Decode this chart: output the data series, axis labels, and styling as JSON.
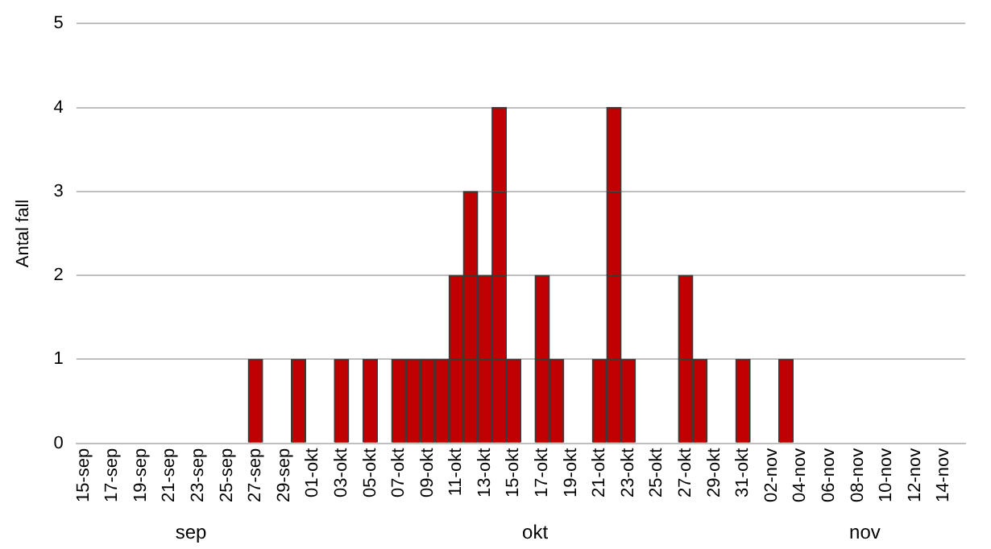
{
  "chart_data": {
    "type": "bar",
    "stacked": true,
    "ylabel": "Antal fall",
    "categories": [
      "15-sep",
      null,
      "17-sep",
      null,
      "19-sep",
      null,
      "21-sep",
      null,
      "23-sep",
      null,
      "25-sep",
      null,
      "27-sep",
      null,
      "29-sep",
      null,
      "01-okt",
      null,
      "03-okt",
      null,
      "05-okt",
      null,
      "07-okt",
      null,
      "09-okt",
      null,
      "11-okt",
      null,
      "13-okt",
      null,
      "15-okt",
      null,
      "17-okt",
      null,
      "19-okt",
      null,
      "21-okt",
      null,
      "23-okt",
      null,
      "25-okt",
      null,
      "27-okt",
      null,
      "29-okt",
      null,
      "31-okt",
      null,
      "02-nov",
      null,
      "04-nov",
      null,
      "06-nov",
      null,
      "08-nov",
      null,
      "10-nov",
      null,
      "12-nov",
      null,
      "14-nov",
      null
    ],
    "series": [
      {
        "color": "#c00000",
        "values": [
          null,
          null,
          null,
          null,
          null,
          null,
          null,
          null,
          null,
          null,
          null,
          null,
          1,
          null,
          null,
          1,
          null,
          null,
          1,
          null,
          1,
          null,
          1,
          1,
          1,
          1,
          1,
          1,
          1,
          1,
          1,
          null,
          1,
          1,
          null,
          null,
          1,
          1,
          1,
          null,
          null,
          null,
          1,
          1,
          null,
          null,
          1,
          null,
          null,
          1,
          null,
          null,
          null,
          null,
          null,
          null,
          null,
          null,
          null,
          null,
          null,
          null
        ]
      },
      {
        "color": "#c00000",
        "values": [
          null,
          null,
          null,
          null,
          null,
          null,
          null,
          null,
          null,
          null,
          null,
          null,
          null,
          null,
          null,
          null,
          null,
          null,
          null,
          null,
          null,
          null,
          null,
          null,
          null,
          null,
          1,
          1,
          1,
          1,
          null,
          null,
          1,
          null,
          null,
          null,
          null,
          1,
          null,
          null,
          null,
          null,
          1,
          null,
          null,
          null,
          null,
          null,
          null,
          null,
          null,
          null,
          null,
          null,
          null,
          null,
          null,
          null,
          null,
          null,
          null,
          null
        ]
      },
      {
        "color": "#c00000",
        "values": [
          null,
          null,
          null,
          null,
          null,
          null,
          null,
          null,
          null,
          null,
          null,
          null,
          null,
          null,
          null,
          null,
          null,
          null,
          null,
          null,
          null,
          null,
          null,
          null,
          null,
          null,
          null,
          1,
          null,
          1,
          null,
          null,
          null,
          null,
          null,
          null,
          null,
          1,
          null,
          null,
          null,
          null,
          null,
          null,
          null,
          null,
          null,
          null,
          null,
          null,
          null,
          null,
          null,
          null,
          null,
          null,
          null,
          null,
          null,
          null,
          null,
          null
        ]
      },
      {
        "color": "#c00000",
        "values": [
          null,
          null,
          null,
          null,
          null,
          null,
          null,
          null,
          null,
          null,
          null,
          null,
          null,
          null,
          null,
          null,
          null,
          null,
          null,
          null,
          null,
          null,
          null,
          null,
          null,
          null,
          null,
          null,
          null,
          1,
          null,
          null,
          null,
          null,
          null,
          null,
          null,
          1,
          null,
          null,
          null,
          null,
          null,
          null,
          null,
          null,
          null,
          null,
          null,
          null,
          null,
          null,
          null,
          null,
          null,
          null,
          null,
          null,
          null,
          null,
          null,
          null
        ]
      }
    ],
    "ylim": [
      0,
      5
    ],
    "yticks": [
      0,
      1,
      2,
      3,
      4,
      5
    ],
    "grid": "y",
    "legend": false,
    "annotations": [
      "sep",
      "okt",
      "nov"
    ]
  }
}
